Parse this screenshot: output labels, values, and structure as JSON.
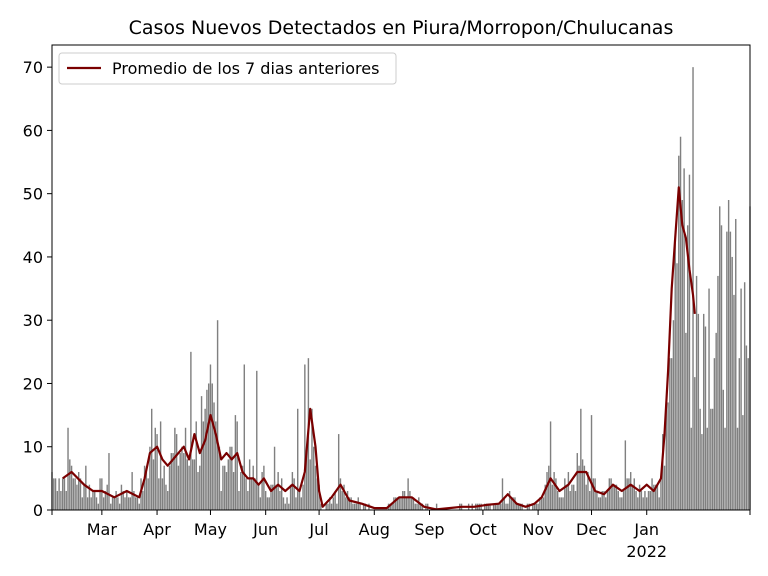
{
  "chart_data": {
    "type": "bar",
    "title": "Casos Nuevos Detectados en Piura/Morropon/Chulucanas",
    "xlabel": "",
    "ylabel": "",
    "ylim": [
      0,
      73.5
    ],
    "yticks": [
      0,
      10,
      20,
      30,
      40,
      50,
      60,
      70
    ],
    "x_start": "2021-02-01",
    "x_end": "2022-02-28",
    "xticks": [
      {
        "date": "2021-03-01",
        "label": "Mar",
        "sublabel": ""
      },
      {
        "date": "2021-04-01",
        "label": "Apr",
        "sublabel": ""
      },
      {
        "date": "2021-05-01",
        "label": "May",
        "sublabel": ""
      },
      {
        "date": "2021-06-01",
        "label": "Jun",
        "sublabel": ""
      },
      {
        "date": "2021-07-01",
        "label": "Jul",
        "sublabel": ""
      },
      {
        "date": "2021-08-01",
        "label": "Aug",
        "sublabel": ""
      },
      {
        "date": "2021-09-01",
        "label": "Sep",
        "sublabel": ""
      },
      {
        "date": "2021-10-01",
        "label": "Oct",
        "sublabel": ""
      },
      {
        "date": "2021-11-01",
        "label": "Nov",
        "sublabel": ""
      },
      {
        "date": "2021-12-01",
        "label": "Dec",
        "sublabel": ""
      },
      {
        "date": "2022-01-01",
        "label": "Jan",
        "sublabel": "2022"
      }
    ],
    "legend_position": "top-left",
    "bar_color": "#808080",
    "line_color": "#7a0000",
    "series": [
      {
        "name": "Promedio de los 7 dias anteriores",
        "kind": "line",
        "x": [
          "2021-02-07",
          "2021-02-12",
          "2021-02-19",
          "2021-02-24",
          "2021-03-01",
          "2021-03-08",
          "2021-03-15",
          "2021-03-22",
          "2021-03-25",
          "2021-03-28",
          "2021-04-01",
          "2021-04-04",
          "2021-04-07",
          "2021-04-10",
          "2021-04-13",
          "2021-04-16",
          "2021-04-19",
          "2021-04-22",
          "2021-04-25",
          "2021-04-28",
          "2021-05-01",
          "2021-05-04",
          "2021-05-07",
          "2021-05-10",
          "2021-05-13",
          "2021-05-16",
          "2021-05-19",
          "2021-05-22",
          "2021-05-25",
          "2021-05-28",
          "2021-05-31",
          "2021-06-04",
          "2021-06-08",
          "2021-06-12",
          "2021-06-16",
          "2021-06-20",
          "2021-06-23",
          "2021-06-26",
          "2021-06-29",
          "2021-07-01",
          "2021-07-03",
          "2021-07-08",
          "2021-07-13",
          "2021-07-18",
          "2021-07-25",
          "2021-08-01",
          "2021-08-08",
          "2021-08-15",
          "2021-08-22",
          "2021-08-29",
          "2021-09-05",
          "2021-09-12",
          "2021-09-19",
          "2021-09-26",
          "2021-10-03",
          "2021-10-10",
          "2021-10-15",
          "2021-10-20",
          "2021-10-25",
          "2021-10-30",
          "2021-11-03",
          "2021-11-08",
          "2021-11-13",
          "2021-11-18",
          "2021-11-23",
          "2021-11-28",
          "2021-12-03",
          "2021-12-08",
          "2021-12-13",
          "2021-12-18",
          "2021-12-23",
          "2021-12-28",
          "2022-01-01",
          "2022-01-05",
          "2022-01-09",
          "2022-01-11",
          "2022-01-13",
          "2022-01-15",
          "2022-01-17",
          "2022-01-19",
          "2022-01-21",
          "2022-01-23",
          "2022-01-25",
          "2022-01-27",
          "2022-01-28"
        ],
        "values": [
          5,
          6,
          4,
          3,
          3,
          2,
          3,
          2,
          5,
          9,
          10,
          8,
          7,
          8,
          9,
          10,
          8,
          12,
          9,
          11,
          15,
          12,
          8,
          9,
          8,
          9,
          6,
          5,
          5,
          4,
          5,
          3,
          4,
          3,
          4,
          3,
          6,
          16,
          10,
          3,
          0.5,
          2,
          4,
          1.5,
          1,
          0.3,
          0.3,
          2,
          2,
          0.5,
          0.1,
          0.3,
          0.5,
          0.5,
          0.8,
          1,
          2.5,
          1,
          0.5,
          1,
          2,
          5,
          3,
          4,
          6,
          6,
          3,
          2.5,
          4,
          3,
          4,
          3,
          4,
          3,
          5,
          12,
          22,
          35,
          43,
          51,
          45,
          43,
          38,
          34,
          31
        ]
      },
      {
        "name": "",
        "kind": "bar",
        "daily_sample_x": [
          "2021-02-01",
          "2021-02-05",
          "2021-02-10",
          "2021-02-14",
          "2021-02-20",
          "2021-03-05",
          "2021-03-18",
          "2021-03-29",
          "2021-04-03",
          "2021-04-12",
          "2021-04-20",
          "2021-04-26",
          "2021-04-30",
          "2021-05-05",
          "2021-05-15",
          "2021-05-20",
          "2021-05-27",
          "2021-06-06",
          "2021-06-19",
          "2021-06-23",
          "2021-06-25",
          "2021-06-27",
          "2021-07-12",
          "2021-08-20",
          "2021-09-05",
          "2021-10-12",
          "2021-11-08",
          "2021-11-25",
          "2021-12-01",
          "2021-12-20",
          "2022-01-10",
          "2022-01-14",
          "2022-01-16",
          "2022-01-18",
          "2022-01-19",
          "2022-01-20",
          "2022-01-22",
          "2022-01-25",
          "2022-01-26",
          "2022-01-27",
          "2022-01-28"
        ],
        "daily_sample_values": [
          6,
          5,
          13,
          5,
          7,
          9,
          6,
          16,
          14,
          12,
          25,
          18,
          20,
          30,
          15,
          23,
          22,
          10,
          16,
          23,
          24,
          16,
          12,
          5,
          1,
          5,
          14,
          16,
          15,
          11,
          12,
          24,
          30,
          39,
          56,
          59,
          54,
          53,
          13,
          70,
          21
        ]
      }
    ]
  }
}
